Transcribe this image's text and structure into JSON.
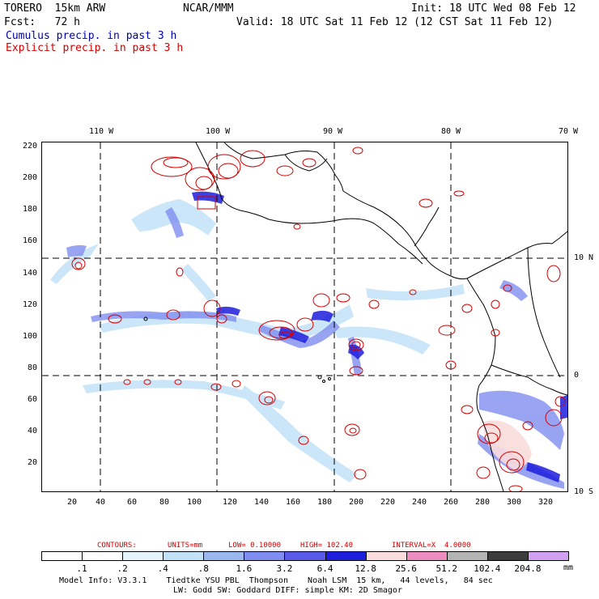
{
  "header": {
    "model": "TORERO  15km ARW",
    "org": "NCAR/MMM",
    "init": "Init: 18 UTC Wed 08 Feb 12",
    "fcst": "Fcst:   72 h",
    "valid": "Valid: 18 UTC Sat 11 Feb 12 (12 CST Sat 11 Feb 12)",
    "legend_cumulus": "Cumulus precip. in past 3 h",
    "legend_explicit": "Explicit precip. in past 3 h"
  },
  "map": {
    "lon_labels": [
      "110 W",
      "100 W",
      "90 W",
      "80 W",
      "70 W"
    ],
    "lat_labels": [
      "10 N",
      "0",
      "10 S"
    ],
    "y_ticks": [
      "220",
      "200",
      "180",
      "160",
      "140",
      "120",
      "100",
      "80",
      "60",
      "40",
      "20"
    ],
    "x_ticks": [
      "20",
      "40",
      "60",
      "80",
      "100",
      "120",
      "140",
      "160",
      "180",
      "200",
      "220",
      "240",
      "260",
      "280",
      "300",
      "320"
    ]
  },
  "contours": {
    "label": "CONTOURS:",
    "units": "UNITS=mm",
    "low": "LOW= 0.10000",
    "high": "HIGH= 102.40",
    "interval": "INTERVAL=X  4.0000"
  },
  "colorbar": {
    "labels": [
      ".1",
      ".2",
      ".4",
      ".8",
      "1.6",
      "3.2",
      "6.4",
      "12.8",
      "25.6",
      "51.2",
      "102.4",
      "204.8"
    ],
    "unit": "mm",
    "colors": [
      "#ffffff",
      "#ffffff",
      "#e6f4fc",
      "#c3e2f8",
      "#9bb8ee",
      "#7f8df0",
      "#5a5ae8",
      "#1d1ddc",
      "#fadcdc",
      "#ec8cc0",
      "#b4b4b4",
      "#3c3c3c",
      "#d2a0f0"
    ]
  },
  "footer": {
    "line1": "Model Info: V3.3.1    Tiedtke YSU PBL  Thompson    Noah LSM  15 km,   44 levels,   84 sec",
    "line2": "LW: Godd SW: Goddard DIFF: simple KM: 2D Smagor"
  }
}
